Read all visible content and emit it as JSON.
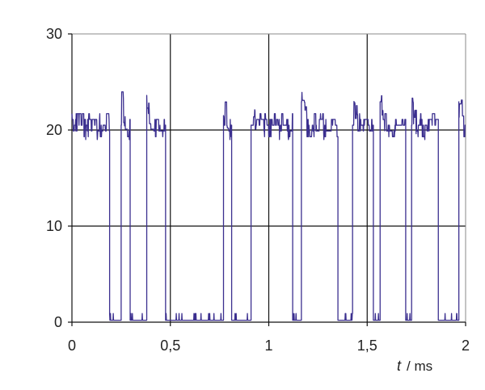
{
  "chart_data": {
    "type": "line",
    "title": "",
    "xlabel": "t / ms",
    "xlabel_symbol": "t",
    "xlabel_unit": "/ ms",
    "ylabel": "",
    "xlim": [
      0,
      2
    ],
    "ylim": [
      0,
      30
    ],
    "grid": true,
    "grid_axis": "both",
    "legend": false,
    "x_ticks": [
      {
        "value": 0,
        "label": "0"
      },
      {
        "value": 0.5,
        "label": "0,5"
      },
      {
        "value": 1,
        "label": "1"
      },
      {
        "value": 1.5,
        "label": "1,5"
      },
      {
        "value": 2,
        "label": "2"
      }
    ],
    "y_ticks": [
      {
        "value": 0,
        "label": "0"
      },
      {
        "value": 10,
        "label": "10"
      },
      {
        "value": 20,
        "label": "20"
      },
      {
        "value": 30,
        "label": "30"
      }
    ],
    "colors": {
      "line": "#3b2f8f",
      "grid": "#111111",
      "frame": "#888888"
    },
    "high_level": 20.5,
    "low_level": 0.2,
    "overshoot_level": 23,
    "high_intervals": [
      [
        0.0,
        0.19
      ],
      [
        0.25,
        0.295
      ],
      [
        0.38,
        0.475
      ],
      [
        0.77,
        0.81
      ],
      [
        0.91,
        1.12
      ],
      [
        1.165,
        1.35
      ],
      [
        1.425,
        1.53
      ],
      [
        1.565,
        1.695
      ],
      [
        1.725,
        1.86
      ],
      [
        1.965,
        2.0
      ]
    ],
    "overshoot_times": [
      0.25,
      0.38,
      0.77,
      0.91,
      1.165,
      1.425,
      1.565,
      1.725,
      1.965
    ]
  }
}
